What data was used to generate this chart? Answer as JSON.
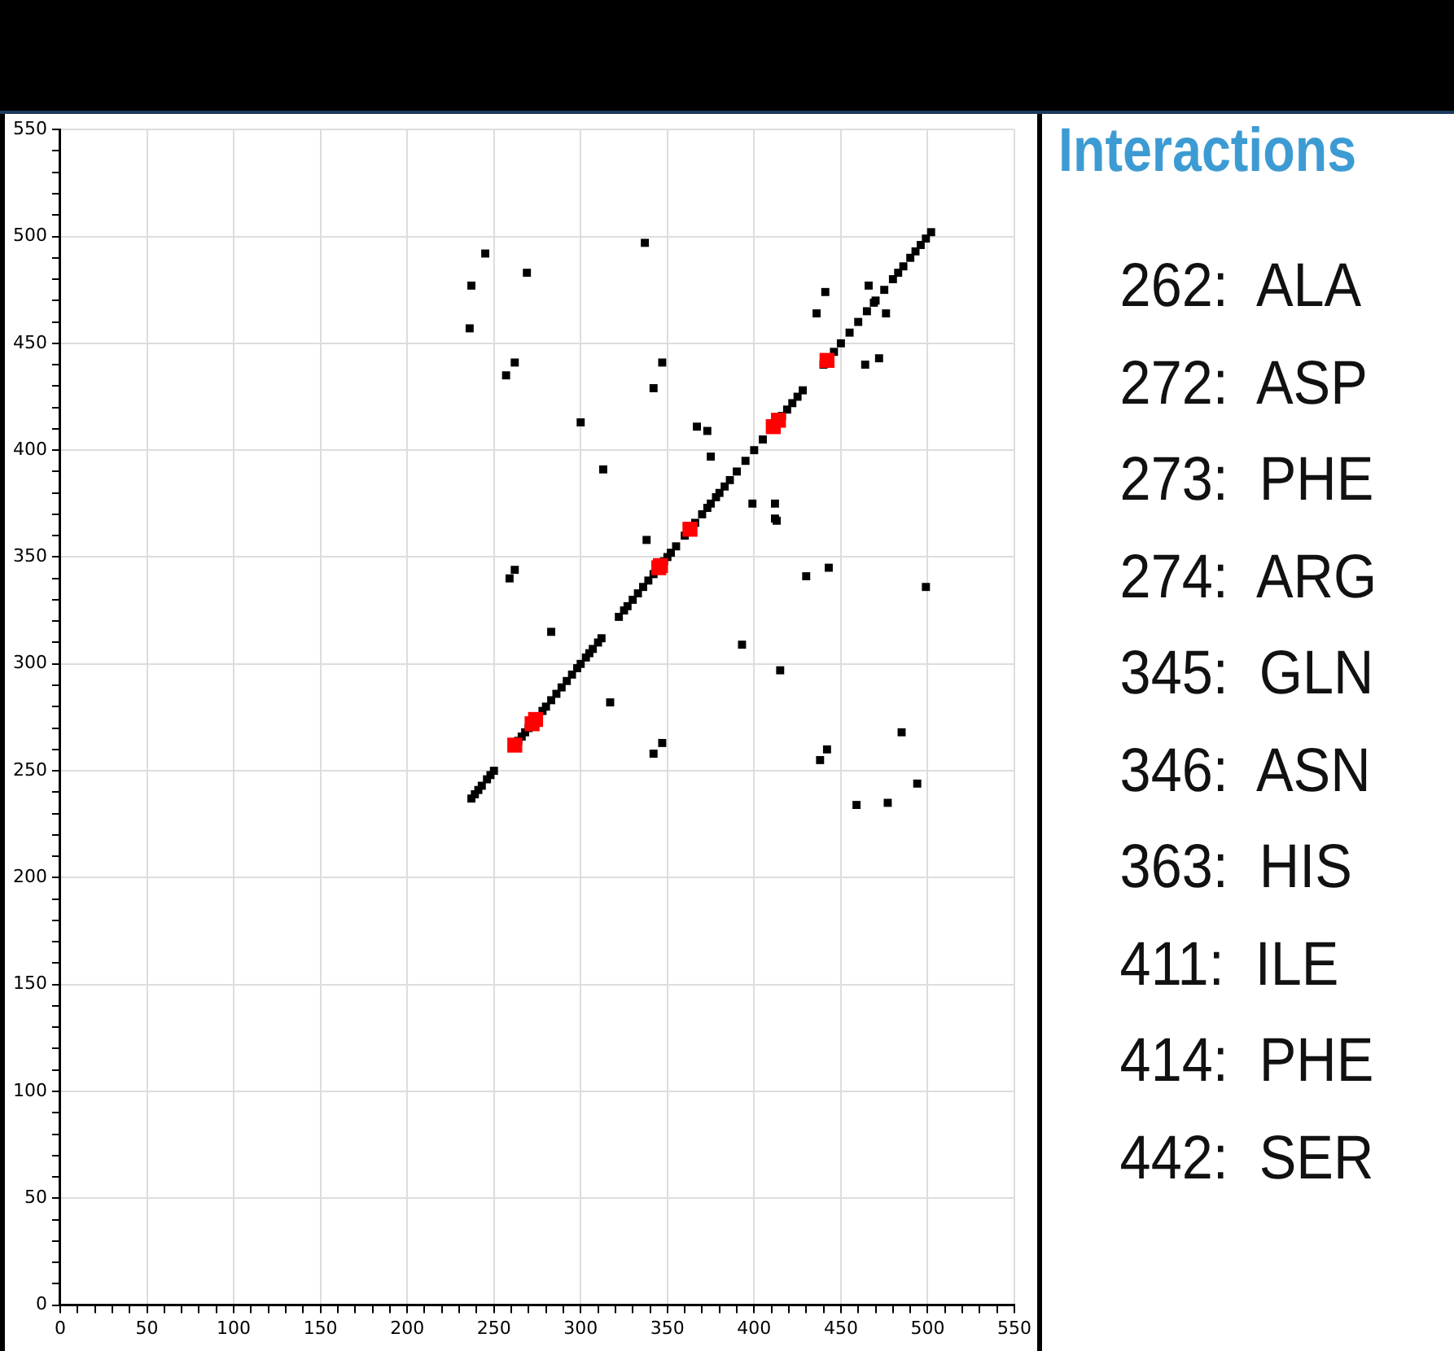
{
  "chart_data": {
    "type": "scatter",
    "xlim": [
      0,
      550
    ],
    "ylim": [
      0,
      550
    ],
    "xticks": [
      0,
      {
        "value": 10,
        "label": null
      },
      {
        "value": 20,
        "label": null
      },
      {
        "value": 30,
        "label": null
      },
      {
        "value": 40,
        "label": null
      },
      50,
      {
        "value": 60,
        "label": null
      },
      {
        "value": 70,
        "label": null
      },
      {
        "value": 80,
        "label": null
      },
      {
        "value": 90,
        "label": null
      },
      100,
      {
        "value": 110,
        "label": null
      },
      {
        "value": 120,
        "label": null
      },
      {
        "value": 130,
        "label": null
      },
      {
        "value": 140,
        "label": null
      },
      150,
      {
        "value": 160,
        "label": null
      },
      {
        "value": 170,
        "label": null
      },
      {
        "value": 180,
        "label": null
      },
      {
        "value": 190,
        "label": null
      },
      200,
      {
        "value": 210,
        "label": null
      },
      {
        "value": 220,
        "label": null
      },
      {
        "value": 230,
        "label": null
      },
      {
        "value": 240,
        "label": null
      },
      250,
      {
        "value": 260,
        "label": null
      },
      {
        "value": 270,
        "label": null
      },
      {
        "value": 280,
        "label": null
      },
      {
        "value": 290,
        "label": null
      },
      300,
      {
        "value": 310,
        "label": null
      },
      {
        "value": 320,
        "label": null
      },
      {
        "value": 330,
        "label": null
      },
      {
        "value": 340,
        "label": null
      },
      350,
      {
        "value": 360,
        "label": null
      },
      {
        "value": 370,
        "label": null
      },
      {
        "value": 380,
        "label": null
      },
      {
        "value": 390,
        "label": null
      },
      400,
      {
        "value": 410,
        "label": null
      },
      {
        "value": 420,
        "label": null
      },
      {
        "value": 430,
        "label": null
      },
      {
        "value": 440,
        "label": null
      },
      450,
      {
        "value": 460,
        "label": null
      },
      {
        "value": 470,
        "label": null
      },
      {
        "value": 480,
        "label": null
      },
      {
        "value": 490,
        "label": null
      },
      500,
      {
        "value": 510,
        "label": null
      },
      {
        "value": 520,
        "label": null
      },
      {
        "value": 530,
        "label": null
      },
      {
        "value": 540,
        "label": null
      },
      550
    ],
    "yticks": [
      0,
      {
        "value": 10,
        "label": null
      },
      {
        "value": 20,
        "label": null
      },
      {
        "value": 30,
        "label": null
      },
      {
        "value": 40,
        "label": null
      },
      50,
      {
        "value": 60,
        "label": null
      },
      {
        "value": 70,
        "label": null
      },
      {
        "value": 80,
        "label": null
      },
      {
        "value": 90,
        "label": null
      },
      100,
      {
        "value": 110,
        "label": null
      },
      {
        "value": 120,
        "label": null
      },
      {
        "value": 130,
        "label": null
      },
      {
        "value": 140,
        "label": null
      },
      150,
      {
        "value": 160,
        "label": null
      },
      {
        "value": 170,
        "label": null
      },
      {
        "value": 180,
        "label": null
      },
      {
        "value": 190,
        "label": null
      },
      200,
      {
        "value": 210,
        "label": null
      },
      {
        "value": 220,
        "label": null
      },
      {
        "value": 230,
        "label": null
      },
      {
        "value": 240,
        "label": null
      },
      250,
      {
        "value": 260,
        "label": null
      },
      {
        "value": 270,
        "label": null
      },
      {
        "value": 280,
        "label": null
      },
      {
        "value": 290,
        "label": null
      },
      300,
      {
        "value": 310,
        "label": null
      },
      {
        "value": 320,
        "label": null
      },
      {
        "value": 330,
        "label": null
      },
      {
        "value": 340,
        "label": null
      },
      350,
      {
        "value": 360,
        "label": null
      },
      {
        "value": 370,
        "label": null
      },
      {
        "value": 380,
        "label": null
      },
      {
        "value": 390,
        "label": null
      },
      400,
      {
        "value": 410,
        "label": null
      },
      {
        "value": 420,
        "label": null
      },
      {
        "value": 430,
        "label": null
      },
      {
        "value": 440,
        "label": null
      },
      450,
      {
        "value": 460,
        "label": null
      },
      {
        "value": 470,
        "label": null
      },
      {
        "value": 480,
        "label": null
      },
      {
        "value": 490,
        "label": null
      },
      500,
      {
        "value": 510,
        "label": null
      },
      {
        "value": 520,
        "label": null
      },
      {
        "value": 530,
        "label": null
      },
      {
        "value": 540,
        "label": null
      },
      550
    ],
    "grid": true,
    "marker": "square",
    "series": [
      {
        "color": "#000000",
        "x": [
          237,
          239,
          241,
          243,
          246,
          248,
          250,
          264,
          266,
          268,
          270,
          278,
          280,
          283,
          286,
          289,
          292,
          295,
          298,
          300,
          303,
          305,
          307,
          310,
          312,
          322,
          325,
          327,
          330,
          333,
          336,
          339,
          342,
          348,
          350,
          352,
          355,
          360,
          366,
          370,
          373,
          375,
          378,
          380,
          383,
          386,
          390,
          395,
          400,
          405,
          416,
          419,
          422,
          425,
          428,
          440,
          446,
          450,
          455,
          460,
          465,
          470,
          475,
          480,
          483,
          486,
          490,
          493,
          496,
          499,
          502,
          245,
          269,
          237,
          236,
          257,
          262,
          300,
          313,
          337,
          342,
          347,
          262,
          259,
          283,
          317,
          338,
          367,
          373,
          375,
          436,
          441,
          466,
          469,
          476,
          464,
          472,
          399,
          412,
          412,
          413,
          393,
          415,
          430,
          443,
          499,
          342,
          347,
          438,
          442,
          485,
          494,
          459,
          477
        ],
        "values": [
          237,
          239,
          241,
          243,
          246,
          248,
          250,
          264,
          266,
          268,
          270,
          278,
          280,
          283,
          286,
          289,
          292,
          295,
          298,
          300,
          303,
          305,
          307,
          310,
          312,
          322,
          325,
          327,
          330,
          333,
          336,
          339,
          342,
          348,
          350,
          352,
          355,
          360,
          366,
          370,
          373,
          375,
          378,
          380,
          383,
          386,
          390,
          395,
          400,
          405,
          416,
          419,
          422,
          425,
          428,
          440,
          446,
          450,
          455,
          460,
          465,
          470,
          475,
          480,
          483,
          486,
          490,
          493,
          496,
          499,
          502,
          492,
          483,
          477,
          457,
          435,
          441,
          413,
          391,
          497,
          429,
          441,
          344,
          340,
          315,
          282,
          358,
          411,
          409,
          397,
          464,
          474,
          477,
          469,
          464,
          440,
          443,
          375,
          368,
          375,
          367,
          309,
          297,
          341,
          345,
          336,
          258,
          263,
          255,
          260,
          268,
          244,
          234,
          235
        ]
      },
      {
        "color": "#ff0000",
        "x": [
          262,
          272,
          273,
          274,
          345,
          346,
          363,
          411,
          414,
          442
        ],
        "values": [
          262,
          272,
          null,
          274,
          345,
          346,
          363,
          411,
          414,
          442
        ]
      }
    ],
    "annotations": [
      "Interactions",
      "262:  ALA",
      "272:  ASP",
      "273:  PHE",
      "274:  ARG",
      "345:  GLN",
      "346:  ASN",
      "363:  HIS",
      "411:  ILE",
      "414:  PHE",
      "442:  SER"
    ]
  }
}
